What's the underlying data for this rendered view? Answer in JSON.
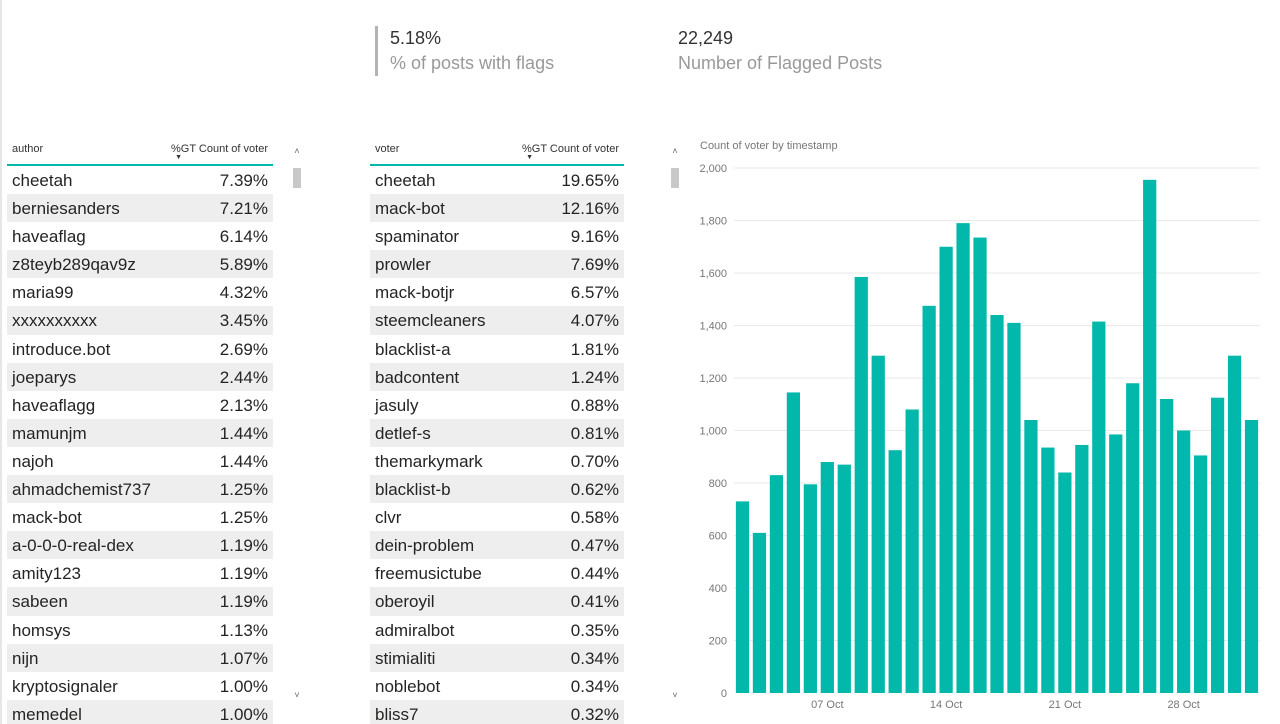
{
  "cards": [
    {
      "value": "5.18%",
      "label": "% of posts with flags"
    },
    {
      "value": "22,249",
      "label": "Number of Flagged Posts"
    }
  ],
  "author_table": {
    "col1": "author",
    "col2": "%GT Count of voter",
    "rows": [
      [
        "cheetah",
        "7.39%"
      ],
      [
        "berniesanders",
        "7.21%"
      ],
      [
        "haveaflag",
        "6.14%"
      ],
      [
        "z8teyb289qav9z",
        "5.89%"
      ],
      [
        "maria99",
        "4.32%"
      ],
      [
        "xxxxxxxxxx",
        "3.45%"
      ],
      [
        "introduce.bot",
        "2.69%"
      ],
      [
        "joeparys",
        "2.44%"
      ],
      [
        "haveaflagg",
        "2.13%"
      ],
      [
        "mamunjm",
        "1.44%"
      ],
      [
        "najoh",
        "1.44%"
      ],
      [
        "ahmadchemist737",
        "1.25%"
      ],
      [
        "mack-bot",
        "1.25%"
      ],
      [
        "a-0-0-0-real-dex",
        "1.19%"
      ],
      [
        "amity123",
        "1.19%"
      ],
      [
        "sabeen",
        "1.19%"
      ],
      [
        "homsys",
        "1.13%"
      ],
      [
        "nijn",
        "1.07%"
      ],
      [
        "kryptosignaler",
        "1.00%"
      ],
      [
        "memedel",
        "1.00%"
      ]
    ]
  },
  "voter_table": {
    "col1": "voter",
    "col2": "%GT Count of voter",
    "rows": [
      [
        "cheetah",
        "19.65%"
      ],
      [
        "mack-bot",
        "12.16%"
      ],
      [
        "spaminator",
        "9.16%"
      ],
      [
        "prowler",
        "7.69%"
      ],
      [
        "mack-botjr",
        "6.57%"
      ],
      [
        "steemcleaners",
        "4.07%"
      ],
      [
        "blacklist-a",
        "1.81%"
      ],
      [
        "badcontent",
        "1.24%"
      ],
      [
        "jasuly",
        "0.88%"
      ],
      [
        "detlef-s",
        "0.81%"
      ],
      [
        "themarkymark",
        "0.70%"
      ],
      [
        "blacklist-b",
        "0.62%"
      ],
      [
        "clvr",
        "0.58%"
      ],
      [
        "dein-problem",
        "0.47%"
      ],
      [
        "freemusictube",
        "0.44%"
      ],
      [
        "oberoyil",
        "0.41%"
      ],
      [
        "admiralbot",
        "0.35%"
      ],
      [
        "stimialiti",
        "0.34%"
      ],
      [
        "noblebot",
        "0.34%"
      ],
      [
        "bliss7",
        "0.32%"
      ]
    ]
  },
  "scroll": {
    "up": "˄",
    "down": "˅"
  },
  "chart_data": {
    "type": "bar",
    "title": "Count of voter by timestamp",
    "xlabel": "",
    "ylabel": "",
    "ylim": [
      0,
      2000
    ],
    "yticks": [
      "0",
      "200",
      "400",
      "600",
      "800",
      "1,000",
      "1,200",
      "1,400",
      "1,600",
      "1,800",
      "2,000"
    ],
    "xtick_labels": [
      {
        "label": "07 Oct",
        "index": 5
      },
      {
        "label": "14 Oct",
        "index": 12
      },
      {
        "label": "21 Oct",
        "index": 19
      },
      {
        "label": "28 Oct",
        "index": 26
      }
    ],
    "values": [
      730,
      610,
      830,
      1145,
      795,
      880,
      870,
      1585,
      1285,
      925,
      1080,
      1475,
      1700,
      1790,
      1735,
      1440,
      1410,
      1040,
      935,
      840,
      945,
      1415,
      985,
      1180,
      1955,
      1120,
      1000,
      905,
      1125,
      1285,
      1040
    ],
    "grid": true,
    "color": "#01b8aa"
  }
}
